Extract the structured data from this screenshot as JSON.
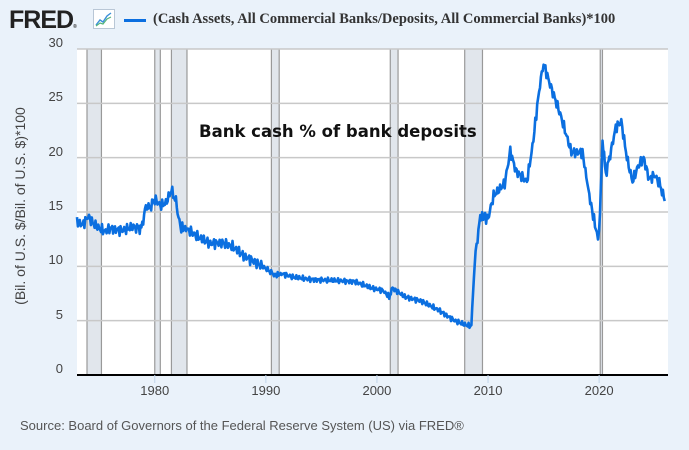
{
  "header": {
    "logo": "FRED",
    "logo_mark": "®",
    "graph_icon": "line-chart-icon",
    "legend_color": "#0b6fe0",
    "series_title": "(Cash Assets, All Commercial Banks/Deposits, All Commercial Banks)*100"
  },
  "annotation": "Bank cash % of bank deposits",
  "source": "Source: Board of Governors of the Federal Reserve System (US) via FRED®",
  "chart_data": {
    "type": "line",
    "title": "(Cash Assets, All Commercial Banks/Deposits, All Commercial Banks)*100",
    "annotation": "Bank cash % of bank deposits",
    "xlabel": "",
    "ylabel": "(Bil. of U.S. $/Bil. of U.S. $)*100",
    "ylim": [
      0,
      30
    ],
    "xlim": [
      1973,
      2026
    ],
    "yticks": [
      "0",
      "5",
      "10",
      "15",
      "20",
      "25",
      "30"
    ],
    "xticks": [
      "1980",
      "1990",
      "2000",
      "2010",
      "2020"
    ],
    "grid": true,
    "legend_position": "top",
    "recessions": [
      [
        1973.9,
        1975.2
      ],
      [
        1980.0,
        1980.5
      ],
      [
        1981.5,
        1982.9
      ],
      [
        1990.5,
        1991.2
      ],
      [
        2001.2,
        2001.9
      ],
      [
        2007.9,
        2009.5
      ],
      [
        2020.1,
        2020.3
      ]
    ],
    "series": [
      {
        "name": "(Cash Assets, All Commercial Banks/Deposits, All Commercial Banks)*100",
        "color": "#0b6fe0",
        "x": [
          1973.0,
          1973.5,
          1974.0,
          1974.5,
          1975.0,
          1975.5,
          1976.0,
          1977.0,
          1978.0,
          1978.8,
          1979.2,
          1979.6,
          1980.0,
          1980.5,
          1981.0,
          1981.5,
          1981.9,
          1982.3,
          1983.0,
          1984.0,
          1985.0,
          1986.0,
          1987.0,
          1988.0,
          1989.0,
          1990.0,
          1990.8,
          1991.5,
          1992.5,
          1994.0,
          1996.0,
          1998.0,
          1999.5,
          2000.5,
          2001.1,
          2001.4,
          2002.5,
          2004.0,
          2005.5,
          2007.0,
          2008.0,
          2008.5,
          2008.8,
          2009.3,
          2010.0,
          2010.5,
          2011.5,
          2012.0,
          2012.5,
          2013.5,
          2014.0,
          2014.6,
          2015.0,
          2015.5,
          2016.5,
          2017.5,
          2018.5,
          2019.2,
          2019.8,
          2020.0,
          2020.3,
          2020.6,
          2021.0,
          2021.5,
          2022.0,
          2022.5,
          2023.0,
          2023.5,
          2024.0,
          2024.5,
          2025.0,
          2025.5,
          2025.9
        ],
        "values": [
          14.2,
          13.8,
          14.6,
          13.9,
          13.5,
          13.2,
          13.5,
          13.3,
          13.6,
          13.5,
          15.5,
          15.4,
          16.2,
          15.6,
          15.8,
          17.0,
          16.0,
          13.6,
          13.4,
          12.6,
          12.1,
          12.2,
          11.8,
          11.0,
          10.4,
          9.8,
          9.2,
          9.3,
          9.0,
          8.8,
          8.7,
          8.6,
          8.0,
          7.8,
          7.2,
          8.0,
          7.2,
          6.8,
          6.0,
          5.0,
          4.6,
          4.5,
          10.5,
          14.6,
          14.4,
          16.5,
          17.6,
          20.6,
          18.8,
          17.8,
          21.0,
          26.2,
          28.7,
          27.0,
          24.0,
          20.5,
          20.5,
          16.0,
          13.0,
          12.8,
          21.5,
          18.5,
          20.3,
          22.8,
          23.3,
          20.0,
          17.8,
          19.2,
          20.0,
          18.0,
          18.4,
          17.5,
          16.0
        ]
      }
    ]
  }
}
